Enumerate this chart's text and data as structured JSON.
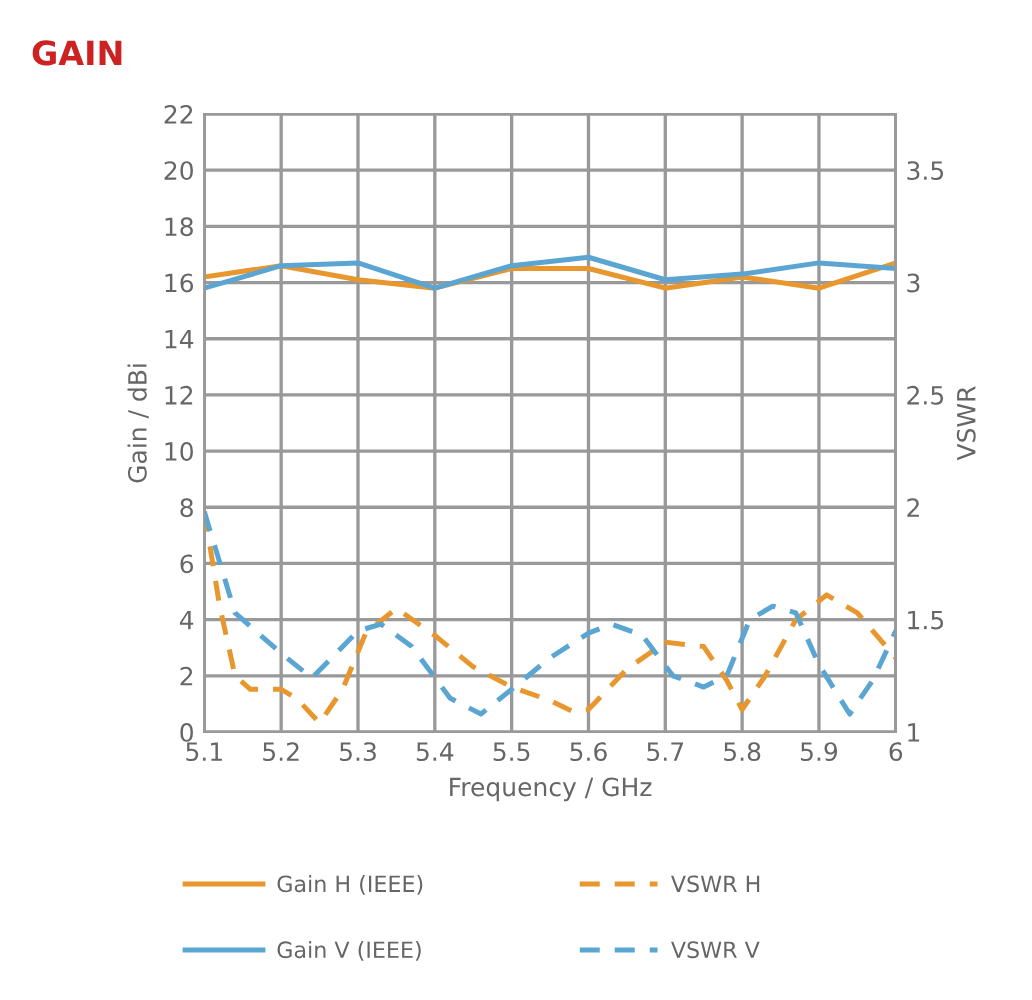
{
  "chart_data": {
    "type": "line",
    "title": "GAIN",
    "xlabel": "Frequency / GHz",
    "ylabel": "Gain / dBi",
    "y2label": "VSWR",
    "xlim": [
      5.1,
      6
    ],
    "xticks": [
      5.1,
      5.2,
      5.3,
      5.4,
      5.5,
      5.6,
      5.7,
      5.8,
      5.9,
      6
    ],
    "ylim": [
      0,
      22
    ],
    "yticks": [
      0,
      2,
      4,
      6,
      8,
      10,
      12,
      14,
      16,
      18,
      20,
      22
    ],
    "y2lim": [
      1,
      3.75
    ],
    "y2ticks": [
      1,
      1.5,
      2,
      2.5,
      3,
      3.5
    ],
    "grid": true,
    "legend": "bottom",
    "marker": "none",
    "series": [
      {
        "name": "Gain H (IEEE)",
        "color": "#e8962e",
        "line_style": "solid",
        "x": [
          5.1,
          5.2,
          5.3,
          5.4,
          5.5,
          5.6,
          5.7,
          5.8,
          5.9,
          6
        ],
        "values": [
          16.2,
          16.6,
          16.1,
          15.8,
          16.5,
          16.5,
          15.8,
          16.2,
          15.8,
          16.7
        ]
      },
      {
        "name": "Gain V (IEEE)",
        "color": "#5aa5d2",
        "line_style": "solid",
        "x": [
          5.1,
          5.2,
          5.3,
          5.4,
          5.5,
          5.6,
          5.7,
          5.8,
          5.9,
          6
        ],
        "values": [
          15.8,
          16.6,
          16.7,
          15.8,
          16.6,
          16.9,
          16.1,
          16.3,
          16.7,
          16.5
        ]
      },
      {
        "name": "VSWR H",
        "color": "#e8962e",
        "line_style": "dashed",
        "axis": "y2",
        "x": [
          5.1,
          5.12,
          5.14,
          5.16,
          5.2,
          5.22,
          5.25,
          5.28,
          5.31,
          5.35,
          5.4,
          5.45,
          5.5,
          5.55,
          5.58,
          5.6,
          5.65,
          5.7,
          5.75,
          5.78,
          5.8,
          5.83,
          5.87,
          5.91,
          5.95,
          6.0
        ],
        "values": [
          1.98,
          1.56,
          1.25,
          1.19,
          1.19,
          1.15,
          1.04,
          1.19,
          1.44,
          1.55,
          1.43,
          1.29,
          1.2,
          1.14,
          1.09,
          1.1,
          1.28,
          1.4,
          1.38,
          1.23,
          1.1,
          1.25,
          1.5,
          1.61,
          1.53,
          1.33
        ]
      },
      {
        "name": "VSWR V",
        "color": "#5aa5d2",
        "line_style": "dashed",
        "axis": "y2",
        "x": [
          5.1,
          5.14,
          5.2,
          5.24,
          5.3,
          5.33,
          5.37,
          5.42,
          5.46,
          5.5,
          5.55,
          5.6,
          5.63,
          5.67,
          5.71,
          5.75,
          5.78,
          5.81,
          5.84,
          5.87,
          5.9,
          5.94,
          5.97,
          6.0
        ],
        "values": [
          1.98,
          1.53,
          1.35,
          1.24,
          1.45,
          1.48,
          1.38,
          1.15,
          1.08,
          1.19,
          1.33,
          1.44,
          1.48,
          1.43,
          1.25,
          1.2,
          1.25,
          1.5,
          1.56,
          1.53,
          1.3,
          1.08,
          1.23,
          1.45
        ]
      }
    ]
  }
}
